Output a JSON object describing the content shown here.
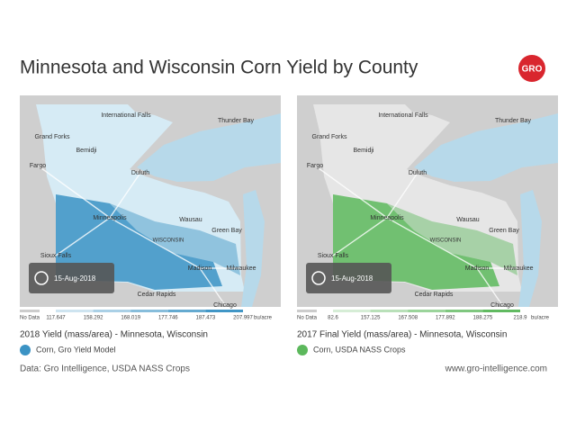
{
  "title": "Minnesota and Wisconsin Corn Yield by County",
  "logo": "GRO",
  "panels": [
    {
      "date": "15-Aug-2018",
      "cities": [
        "International Falls",
        "Thunder Bay",
        "Grand Forks",
        "Bemidji",
        "Fargo",
        "Duluth",
        "Minneapolis",
        "Wausau",
        "WISCONSIN",
        "Green Bay",
        "Sioux Falls",
        "Madison",
        "Milwaukee",
        "Cedar Rapids",
        "Chicago"
      ],
      "legend": {
        "no_data": "No Data",
        "ticks": [
          117.647,
          158.292,
          168.019,
          177.746,
          187.473,
          207.997
        ],
        "unit": "bu/acre"
      },
      "caption": "2018 Yield (mass/area) - Minnesota, Wisconsin",
      "series": {
        "name": "Corn, Gro Yield Model",
        "color": "#3b93c4"
      }
    },
    {
      "date": "15-Aug-2018",
      "cities": [
        "International Falls",
        "Thunder Bay",
        "Grand Forks",
        "Bemidji",
        "Fargo",
        "Duluth",
        "Minneapolis",
        "Wausau",
        "WISCONSIN",
        "Green Bay",
        "Sioux Falls",
        "Madison",
        "Milwaukee",
        "Cedar Rapids",
        "Chicago"
      ],
      "legend": {
        "no_data": "No Data",
        "ticks": [
          82.6,
          157.125,
          167.508,
          177.892,
          188.275,
          218.9
        ],
        "unit": "bu/acre"
      },
      "caption": "2017 Final Yield (mass/area) - Minnesota, Wisconsin",
      "series": {
        "name": "Corn, USDA NASS Crops",
        "color": "#5cb85c"
      }
    }
  ],
  "footer": {
    "source": "Data: Gro Intelligence, USDA NASS Crops",
    "url": "www.gro-intelligence.com"
  }
}
